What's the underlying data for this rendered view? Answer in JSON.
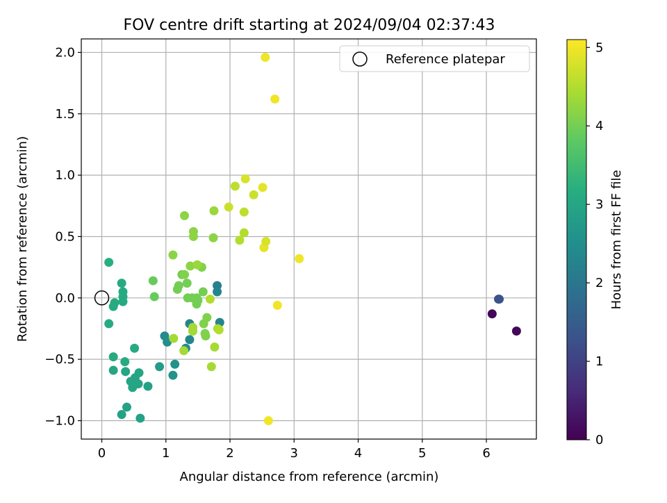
{
  "chart_data": {
    "type": "scatter",
    "title": "FOV centre drift starting at 2024/09/04 02:37:43",
    "xlabel": "Angular distance from reference (arcmin)",
    "ylabel": "Rotation from reference (arcmin)",
    "xlim": [
      -0.32,
      6.78
    ],
    "ylim": [
      -1.15,
      2.11
    ],
    "xticks": [
      0,
      1,
      2,
      3,
      4,
      5,
      6
    ],
    "yticks": [
      -1.0,
      -0.5,
      0.0,
      0.5,
      1.0,
      1.5,
      2.0
    ],
    "xtick_labels": [
      "0",
      "1",
      "2",
      "3",
      "4",
      "5",
      "6"
    ],
    "ytick_labels": [
      "−1.0",
      "−0.5",
      "0.0",
      "0.5",
      "1.0",
      "1.5",
      "2.0"
    ],
    "grid": true,
    "legend": {
      "position": "top-right",
      "entries": [
        "Reference platepar"
      ]
    },
    "reference": {
      "x": 0.0,
      "y": 0.0,
      "label": "Reference platepar"
    },
    "colorbar": {
      "label": "Hours from first FF file",
      "range": [
        0,
        5.1
      ],
      "ticks": [
        0,
        1,
        2,
        3,
        4,
        5
      ],
      "tick_labels": [
        "0",
        "1",
        "2",
        "3",
        "4",
        "5"
      ],
      "colormap": "viridis"
    },
    "points": [
      {
        "x": 6.09,
        "y": -0.13,
        "c": 0.1
      },
      {
        "x": 6.47,
        "y": -0.27,
        "c": 0.1
      },
      {
        "x": 6.19,
        "y": -0.01,
        "c": 1.0
      },
      {
        "x": 6.2,
        "y": -0.01,
        "c": 1.3
      },
      {
        "x": 1.8,
        "y": 0.1,
        "c": 2.2
      },
      {
        "x": 1.8,
        "y": 0.05,
        "c": 2.3
      },
      {
        "x": 1.84,
        "y": -0.2,
        "c": 2.3
      },
      {
        "x": 1.37,
        "y": -0.21,
        "c": 2.3
      },
      {
        "x": 1.42,
        "y": -0.27,
        "c": 2.3
      },
      {
        "x": 1.37,
        "y": -0.34,
        "c": 2.3
      },
      {
        "x": 1.31,
        "y": -0.41,
        "c": 2.4
      },
      {
        "x": 0.98,
        "y": -0.31,
        "c": 2.4
      },
      {
        "x": 1.02,
        "y": -0.36,
        "c": 2.5
      },
      {
        "x": 1.14,
        "y": -0.54,
        "c": 2.6
      },
      {
        "x": 1.11,
        "y": -0.63,
        "c": 2.6
      },
      {
        "x": 0.9,
        "y": -0.56,
        "c": 2.8
      },
      {
        "x": 0.72,
        "y": -0.72,
        "c": 2.9
      },
      {
        "x": 0.6,
        "y": -0.98,
        "c": 2.9
      },
      {
        "x": 0.39,
        "y": -0.89,
        "c": 2.9
      },
      {
        "x": 0.31,
        "y": -0.95,
        "c": 2.9
      },
      {
        "x": 0.57,
        "y": -0.7,
        "c": 3.0
      },
      {
        "x": 0.48,
        "y": -0.73,
        "c": 3.0
      },
      {
        "x": 0.45,
        "y": -0.68,
        "c": 3.0
      },
      {
        "x": 0.52,
        "y": -0.65,
        "c": 3.0
      },
      {
        "x": 0.58,
        "y": -0.61,
        "c": 3.0
      },
      {
        "x": 0.37,
        "y": -0.6,
        "c": 3.0
      },
      {
        "x": 0.18,
        "y": -0.59,
        "c": 3.0
      },
      {
        "x": 0.36,
        "y": -0.52,
        "c": 3.1
      },
      {
        "x": 0.18,
        "y": -0.48,
        "c": 3.1
      },
      {
        "x": 0.51,
        "y": -0.41,
        "c": 3.1
      },
      {
        "x": 0.11,
        "y": -0.21,
        "c": 3.1
      },
      {
        "x": 0.18,
        "y": -0.07,
        "c": 3.1
      },
      {
        "x": 0.2,
        "y": -0.04,
        "c": 3.1
      },
      {
        "x": 0.33,
        "y": -0.03,
        "c": 3.1
      },
      {
        "x": 0.33,
        "y": 0.01,
        "c": 3.1
      },
      {
        "x": 0.33,
        "y": 0.05,
        "c": 3.1
      },
      {
        "x": 0.31,
        "y": 0.12,
        "c": 3.1
      },
      {
        "x": 0.11,
        "y": 0.29,
        "c": 3.2
      },
      {
        "x": 0.8,
        "y": 0.14,
        "c": 3.9
      },
      {
        "x": 0.82,
        "y": 0.01,
        "c": 3.9
      },
      {
        "x": 1.18,
        "y": 0.07,
        "c": 4.0
      },
      {
        "x": 1.2,
        "y": 0.1,
        "c": 4.0
      },
      {
        "x": 1.25,
        "y": 0.19,
        "c": 4.0
      },
      {
        "x": 1.29,
        "y": 0.19,
        "c": 4.1
      },
      {
        "x": 1.33,
        "y": 0.12,
        "c": 4.0
      },
      {
        "x": 1.34,
        "y": 0.0,
        "c": 4.0
      },
      {
        "x": 1.41,
        "y": 0.0,
        "c": 4.0
      },
      {
        "x": 1.48,
        "y": 0.0,
        "c": 4.0
      },
      {
        "x": 1.5,
        "y": -0.02,
        "c": 4.0
      },
      {
        "x": 1.48,
        "y": -0.05,
        "c": 4.0
      },
      {
        "x": 1.58,
        "y": 0.05,
        "c": 4.0
      },
      {
        "x": 1.56,
        "y": 0.25,
        "c": 4.1
      },
      {
        "x": 1.59,
        "y": -0.21,
        "c": 4.1
      },
      {
        "x": 1.64,
        "y": -0.16,
        "c": 4.1
      },
      {
        "x": 1.61,
        "y": -0.29,
        "c": 4.1
      },
      {
        "x": 1.62,
        "y": -0.31,
        "c": 4.1
      },
      {
        "x": 1.38,
        "y": 0.26,
        "c": 4.2
      },
      {
        "x": 1.49,
        "y": 0.27,
        "c": 4.3
      },
      {
        "x": 1.43,
        "y": 0.54,
        "c": 4.2
      },
      {
        "x": 1.43,
        "y": 0.5,
        "c": 4.2
      },
      {
        "x": 1.29,
        "y": 0.67,
        "c": 4.2
      },
      {
        "x": 1.11,
        "y": 0.35,
        "c": 4.2
      },
      {
        "x": 1.74,
        "y": 0.49,
        "c": 4.2
      },
      {
        "x": 1.75,
        "y": 0.71,
        "c": 4.3
      },
      {
        "x": 1.42,
        "y": -0.24,
        "c": 4.4
      },
      {
        "x": 1.42,
        "y": -0.27,
        "c": 4.4
      },
      {
        "x": 1.12,
        "y": -0.33,
        "c": 4.4
      },
      {
        "x": 1.28,
        "y": -0.43,
        "c": 4.4
      },
      {
        "x": 1.71,
        "y": -0.56,
        "c": 4.4
      },
      {
        "x": 1.76,
        "y": -0.4,
        "c": 4.4
      },
      {
        "x": 1.81,
        "y": -0.25,
        "c": 4.4
      },
      {
        "x": 1.83,
        "y": -0.26,
        "c": 4.5
      },
      {
        "x": 1.69,
        "y": -0.01,
        "c": 4.5
      },
      {
        "x": 2.15,
        "y": 0.47,
        "c": 4.5
      },
      {
        "x": 2.22,
        "y": 0.53,
        "c": 4.5
      },
      {
        "x": 2.22,
        "y": 0.7,
        "c": 4.6
      },
      {
        "x": 2.08,
        "y": 0.91,
        "c": 4.6
      },
      {
        "x": 1.98,
        "y": 0.74,
        "c": 4.7
      },
      {
        "x": 2.37,
        "y": 0.84,
        "c": 4.7
      },
      {
        "x": 2.24,
        "y": 0.97,
        "c": 4.8
      },
      {
        "x": 2.51,
        "y": 0.9,
        "c": 4.9
      },
      {
        "x": 2.53,
        "y": 0.41,
        "c": 4.9
      },
      {
        "x": 2.56,
        "y": 0.46,
        "c": 4.8
      },
      {
        "x": 3.08,
        "y": 0.32,
        "c": 5.0
      },
      {
        "x": 2.74,
        "y": -0.06,
        "c": 5.0
      },
      {
        "x": 2.6,
        "y": -1.0,
        "c": 5.0
      },
      {
        "x": 2.55,
        "y": 1.96,
        "c": 5.0
      },
      {
        "x": 2.7,
        "y": 1.62,
        "c": 5.0
      }
    ]
  }
}
